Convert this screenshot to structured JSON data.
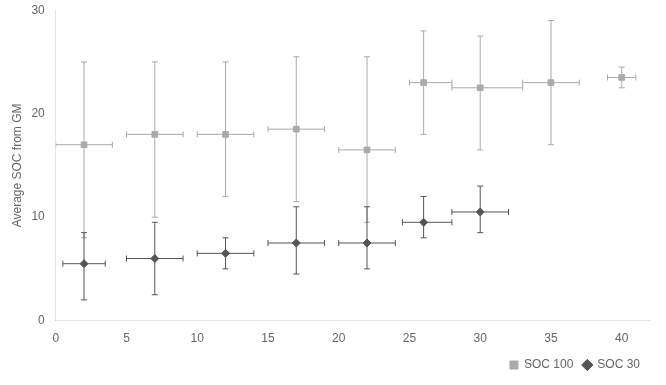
{
  "chart_data": {
    "type": "scatter",
    "ylabel": "Average SOC from GM",
    "xlim": [
      0,
      42
    ],
    "ylim": [
      0,
      30
    ],
    "xticks": [
      0,
      5,
      10,
      15,
      20,
      25,
      30,
      35,
      40
    ],
    "yticks": [
      0,
      10,
      20,
      30
    ],
    "grid": false,
    "legend": "lower right",
    "series": [
      {
        "name": "SOC 100",
        "color": "#aaaaaa",
        "marker": "square",
        "x": [
          2,
          7,
          12,
          17,
          22,
          26,
          30,
          35,
          40
        ],
        "values": [
          17,
          18,
          18,
          18.5,
          16.5,
          23,
          22.5,
          23,
          23.5
        ],
        "xerr_lo": [
          2,
          2,
          2,
          2,
          2,
          1,
          2,
          2,
          1
        ],
        "xerr_hi": [
          2,
          2,
          2,
          2,
          2,
          2,
          3,
          2,
          1
        ],
        "yerr_lo": [
          9,
          8,
          6,
          7,
          7,
          5,
          6,
          6,
          1
        ],
        "yerr_hi": [
          8,
          7,
          7,
          7,
          9,
          5,
          5,
          6,
          1
        ]
      },
      {
        "name": "SOC 30",
        "color": "#555555",
        "marker": "diamond",
        "x": [
          2,
          7,
          12,
          17,
          22,
          26,
          30
        ],
        "values": [
          5.5,
          6,
          6.5,
          7.5,
          7.5,
          9.5,
          10.5
        ],
        "xerr_lo": [
          1.5,
          2,
          2,
          2,
          2,
          1.5,
          2
        ],
        "xerr_hi": [
          1.5,
          2,
          2,
          2,
          2,
          2,
          2
        ],
        "yerr_lo": [
          3.5,
          3.5,
          1.5,
          3,
          2.5,
          1.5,
          2
        ],
        "yerr_hi": [
          3,
          3.5,
          1.5,
          3.5,
          3.5,
          2.5,
          2.5
        ]
      }
    ]
  }
}
